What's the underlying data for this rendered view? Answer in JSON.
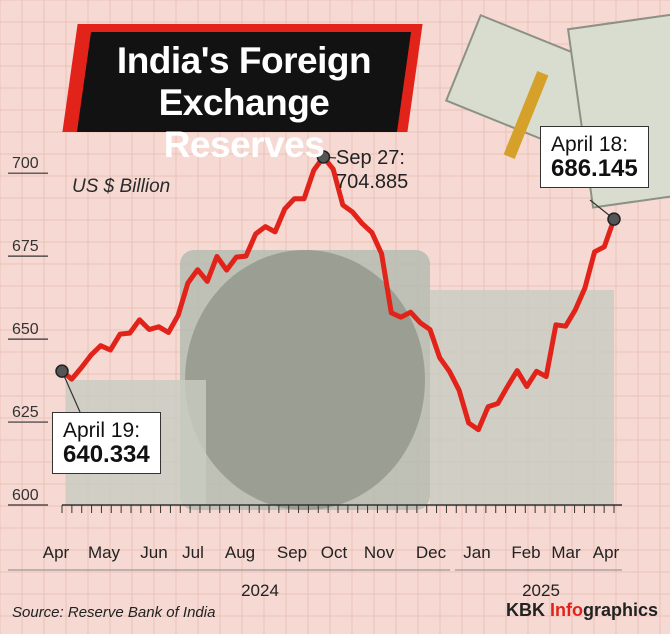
{
  "title_line1": "India's Foreign",
  "title_line2": "Exchange Reserves",
  "unit": "US $ Billion",
  "source": "Source: Reserve Bank of India",
  "credit_prefix": "KBK ",
  "credit_accent": "Info",
  "credit_suffix": "graphics",
  "colors": {
    "background": "#f6d9d3",
    "line": "#e2231a",
    "title_bg": "#121212",
    "title_accent": "#e2231a",
    "point": "#555555"
  },
  "annotations": [
    {
      "date": "April 19:",
      "value": "640.334",
      "style": "boxed"
    },
    {
      "date": "Sep 27:",
      "value": "704.885",
      "style": "plain"
    },
    {
      "date": "April 18:",
      "value": "686.145",
      "style": "boxed"
    }
  ],
  "chart_data": {
    "type": "line",
    "title": "India's Foreign Exchange Reserves",
    "ylabel": "US $ Billion",
    "ylim": [
      600,
      710
    ],
    "yticks": [
      600,
      625,
      650,
      675,
      700
    ],
    "months": [
      "Apr",
      "May",
      "Jun",
      "Jul",
      "Aug",
      "Sep",
      "Oct",
      "Nov",
      "Dec",
      "Jan",
      "Feb",
      "Mar",
      "Apr"
    ],
    "years": [
      "2024",
      "2025"
    ],
    "grid": true,
    "series": [
      {
        "values": [
          640.334,
          637.9,
          641.4,
          645.2,
          648.0,
          646.7,
          651.5,
          651.8,
          655.8,
          652.9,
          653.7,
          652.0,
          657.2,
          666.9,
          670.9,
          667.4,
          674.9,
          670.8,
          674.7,
          675.0,
          681.7,
          683.9,
          682.3,
          689.2,
          692.3,
          692.3,
          700.9,
          704.885,
          701.2,
          690.4,
          688.3,
          684.8,
          682.1,
          675.7,
          657.9,
          656.6,
          658.1,
          654.9,
          652.9,
          644.4,
          640.3,
          634.6,
          624.7,
          622.7,
          629.6,
          630.6,
          635.7,
          640.5,
          635.7,
          640.3,
          638.7,
          654.3,
          653.9,
          658.8,
          665.4,
          676.3,
          677.8,
          686.145
        ]
      }
    ]
  }
}
